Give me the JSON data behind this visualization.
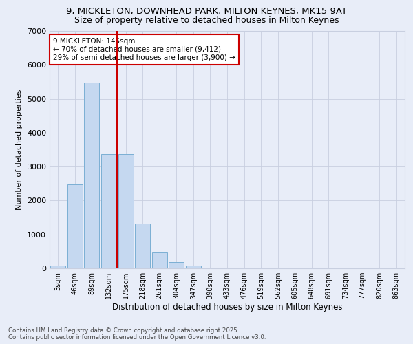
{
  "title_line1": "9, MICKLETON, DOWNHEAD PARK, MILTON KEYNES, MK15 9AT",
  "title_line2": "Size of property relative to detached houses in Milton Keynes",
  "xlabel": "Distribution of detached houses by size in Milton Keynes",
  "ylabel": "Number of detached properties",
  "bar_labels": [
    "3sqm",
    "46sqm",
    "89sqm",
    "132sqm",
    "175sqm",
    "218sqm",
    "261sqm",
    "304sqm",
    "347sqm",
    "390sqm",
    "433sqm",
    "476sqm",
    "519sqm",
    "562sqm",
    "605sqm",
    "648sqm",
    "691sqm",
    "734sqm",
    "777sqm",
    "820sqm",
    "863sqm"
  ],
  "bar_values": [
    80,
    2480,
    5480,
    3360,
    3360,
    1310,
    460,
    185,
    85,
    30,
    0,
    0,
    0,
    0,
    0,
    0,
    0,
    0,
    0,
    0,
    0
  ],
  "bar_color": "#c5d8f0",
  "bar_edgecolor": "#7bafd4",
  "vline_color": "#cc0000",
  "annotation_text": "9 MICKLETON: 145sqm\n← 70% of detached houses are smaller (9,412)\n29% of semi-detached houses are larger (3,900) →",
  "annotation_box_color": "#ffffff",
  "annotation_box_edgecolor": "#cc0000",
  "ylim": [
    0,
    7000
  ],
  "yticks": [
    0,
    1000,
    2000,
    3000,
    4000,
    5000,
    6000,
    7000
  ],
  "bg_color": "#e8edf8",
  "plot_bg_color": "#e8edf8",
  "footer": "Contains HM Land Registry data © Crown copyright and database right 2025.\nContains public sector information licensed under the Open Government Licence v3.0.",
  "title_fontsize": 9.5,
  "subtitle_fontsize": 9.0,
  "grid_color": "#c8cfe0"
}
